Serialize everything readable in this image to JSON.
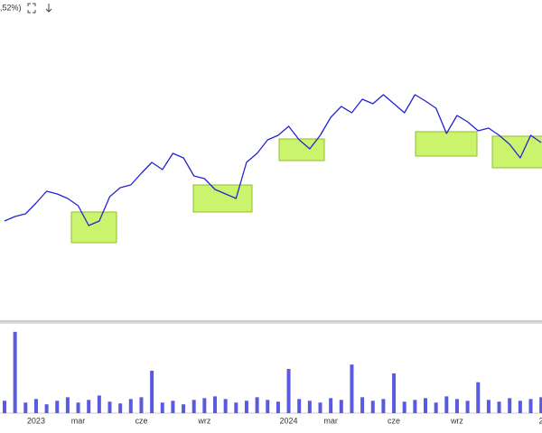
{
  "header": {
    "text": ",52%)"
  },
  "chart_data": [
    {
      "type": "line",
      "color": "#2323d2",
      "categories": [
        null,
        null,
        null,
        "2023",
        null,
        null,
        null,
        "mar",
        null,
        null,
        null,
        null,
        null,
        "cze",
        null,
        null,
        null,
        null,
        null,
        "wrz",
        null,
        null,
        null,
        null,
        null,
        null,
        null,
        "2024",
        null,
        null,
        null,
        "mar",
        null,
        null,
        null,
        null,
        null,
        "cze",
        null,
        null,
        null,
        null,
        null,
        "wrz",
        null,
        null,
        null,
        null,
        null,
        null,
        null,
        "2"
      ],
      "values": [
        110,
        115,
        118,
        130,
        143,
        140,
        135,
        127,
        105,
        110,
        137,
        147,
        150,
        163,
        175,
        167,
        185,
        180,
        160,
        157,
        145,
        140,
        135,
        175,
        185,
        200,
        205,
        215,
        200,
        190,
        205,
        225,
        237,
        230,
        245,
        240,
        250,
        240,
        230,
        250,
        243,
        235,
        207,
        227,
        220,
        210,
        213,
        205,
        195,
        180,
        205,
        197
      ],
      "ylim": [
        0,
        355
      ]
    },
    {
      "type": "bar",
      "color": "#5a5ae0",
      "values": [
        14,
        92,
        12,
        16,
        10,
        14,
        18,
        12,
        15,
        20,
        13,
        11,
        16,
        18,
        48,
        12,
        14,
        10,
        15,
        17,
        19,
        16,
        12,
        14,
        18,
        15,
        13,
        50,
        16,
        14,
        12,
        17,
        15,
        55,
        18,
        14,
        16,
        45,
        13,
        15,
        17,
        12,
        19,
        16,
        14,
        35,
        15,
        13,
        17,
        14,
        16,
        18
      ],
      "ylim": [
        0,
        100
      ]
    }
  ]
}
